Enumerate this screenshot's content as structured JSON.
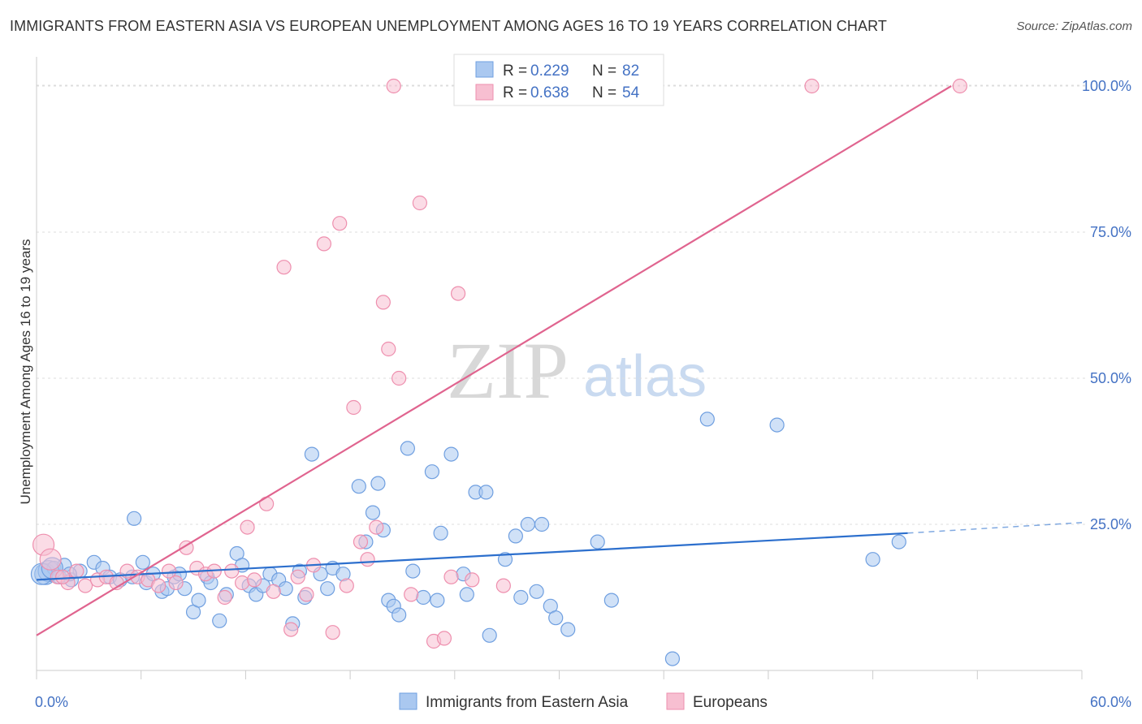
{
  "header": {
    "title": "IMMIGRANTS FROM EASTERN ASIA VS EUROPEAN UNEMPLOYMENT AMONG AGES 16 TO 19 YEARS CORRELATION CHART",
    "source": "Source: ZipAtlas.com"
  },
  "watermark": {
    "zip": "ZIP",
    "atlas": "atlas"
  },
  "chart_data": {
    "type": "scatter",
    "title": "IMMIGRANTS FROM EASTERN ASIA VS EUROPEAN UNEMPLOYMENT AMONG AGES 16 TO 19 YEARS CORRELATION CHART",
    "xlabel": "",
    "ylabel": "Unemployment Among Ages 16 to 19 years",
    "xlim": [
      0,
      60
    ],
    "ylim": [
      0,
      105
    ],
    "x_tick_labels": {
      "min": "0.0%",
      "max": "60.0%"
    },
    "y_tick_labels": [
      "25.0%",
      "50.0%",
      "75.0%",
      "100.0%"
    ],
    "y_tick_values": [
      25,
      50,
      75,
      100
    ],
    "grid": true,
    "legend_position": "top-center",
    "legend": [
      {
        "r_label": "R =",
        "r_value": "0.229",
        "n_label": "N =",
        "n_value": "82"
      },
      {
        "r_label": "R =",
        "r_value": "0.638",
        "n_label": "N =",
        "n_value": "54"
      }
    ],
    "series": [
      {
        "name": "Immigrants from Eastern Asia",
        "color": "#6f9fe0",
        "fill": "#aac8f0",
        "line_color": "#2c6fcd",
        "trend": {
          "x0": 0,
          "y0": 15.5,
          "x1": 50,
          "y1": 23.5,
          "dash_to_x": 60,
          "dash_to_y": 25.3
        },
        "points": [
          [
            0.5,
            16.5
          ],
          [
            0.7,
            17.0
          ],
          [
            1.0,
            17.5
          ],
          [
            1.3,
            16.0
          ],
          [
            1.6,
            18.0
          ],
          [
            2.0,
            15.5
          ],
          [
            2.5,
            17.0
          ],
          [
            3.3,
            18.5
          ],
          [
            3.8,
            17.5
          ],
          [
            4.2,
            16.0
          ],
          [
            4.8,
            15.5
          ],
          [
            5.5,
            16.0
          ],
          [
            5.6,
            26.0
          ],
          [
            6.1,
            18.5
          ],
          [
            6.3,
            15.0
          ],
          [
            6.7,
            16.5
          ],
          [
            7.2,
            13.5
          ],
          [
            7.5,
            14.0
          ],
          [
            7.9,
            16.0
          ],
          [
            8.2,
            16.5
          ],
          [
            8.5,
            14.0
          ],
          [
            9.0,
            10.0
          ],
          [
            9.3,
            12.0
          ],
          [
            9.8,
            16.0
          ],
          [
            10.0,
            15.0
          ],
          [
            10.5,
            8.5
          ],
          [
            10.9,
            13.0
          ],
          [
            11.5,
            20.0
          ],
          [
            11.8,
            18.0
          ],
          [
            12.2,
            14.5
          ],
          [
            12.6,
            13.0
          ],
          [
            13.0,
            14.5
          ],
          [
            13.4,
            16.5
          ],
          [
            13.9,
            15.5
          ],
          [
            14.3,
            14.0
          ],
          [
            14.7,
            8.0
          ],
          [
            15.1,
            17.0
          ],
          [
            15.4,
            12.5
          ],
          [
            15.8,
            37.0
          ],
          [
            16.3,
            16.5
          ],
          [
            16.7,
            14.0
          ],
          [
            17.0,
            17.5
          ],
          [
            17.6,
            16.5
          ],
          [
            18.5,
            31.5
          ],
          [
            18.9,
            22.0
          ],
          [
            19.3,
            27.0
          ],
          [
            19.6,
            32.0
          ],
          [
            19.9,
            24.0
          ],
          [
            20.2,
            12.0
          ],
          [
            20.5,
            11.0
          ],
          [
            20.8,
            9.5
          ],
          [
            21.3,
            38.0
          ],
          [
            21.6,
            17.0
          ],
          [
            22.2,
            12.5
          ],
          [
            22.7,
            34.0
          ],
          [
            23.0,
            12.0
          ],
          [
            23.2,
            23.5
          ],
          [
            23.8,
            37.0
          ],
          [
            24.5,
            16.5
          ],
          [
            24.7,
            13.0
          ],
          [
            25.2,
            30.5
          ],
          [
            25.8,
            30.5
          ],
          [
            26.0,
            6.0
          ],
          [
            26.9,
            19.0
          ],
          [
            27.5,
            23.0
          ],
          [
            27.8,
            12.5
          ],
          [
            28.2,
            25.0
          ],
          [
            28.7,
            13.5
          ],
          [
            29.0,
            25.0
          ],
          [
            29.5,
            11.0
          ],
          [
            29.8,
            9.0
          ],
          [
            30.5,
            7.0
          ],
          [
            32.2,
            22.0
          ],
          [
            33.0,
            12.0
          ],
          [
            36.5,
            2.0
          ],
          [
            38.5,
            43.0
          ],
          [
            42.5,
            42.0
          ],
          [
            48.0,
            19.0
          ],
          [
            49.5,
            22.0
          ],
          [
            0.3,
            16.5
          ],
          [
            0.9,
            17.5
          ],
          [
            1.9,
            16.5
          ]
        ]
      },
      {
        "name": "Europeans",
        "color": "#ee8fae",
        "fill": "#f7bfd1",
        "line_color": "#e0648f",
        "trend": {
          "x0": 0,
          "y0": 6,
          "x1": 52.5,
          "y1": 100
        },
        "points": [
          [
            0.4,
            21.5
          ],
          [
            0.8,
            19.0
          ],
          [
            1.2,
            16.0
          ],
          [
            1.8,
            15.0
          ],
          [
            2.3,
            17.0
          ],
          [
            2.8,
            14.5
          ],
          [
            3.5,
            15.5
          ],
          [
            4.0,
            16.0
          ],
          [
            4.6,
            15.0
          ],
          [
            5.2,
            17.0
          ],
          [
            5.8,
            16.0
          ],
          [
            6.4,
            15.5
          ],
          [
            7.0,
            14.5
          ],
          [
            7.6,
            17.0
          ],
          [
            8.0,
            15.0
          ],
          [
            8.6,
            21.0
          ],
          [
            9.2,
            17.5
          ],
          [
            9.7,
            16.5
          ],
          [
            10.2,
            17.0
          ],
          [
            10.8,
            12.5
          ],
          [
            11.2,
            17.0
          ],
          [
            11.8,
            15.0
          ],
          [
            12.1,
            24.5
          ],
          [
            12.5,
            15.5
          ],
          [
            13.2,
            28.5
          ],
          [
            13.6,
            13.5
          ],
          [
            14.2,
            69.0
          ],
          [
            14.6,
            7.0
          ],
          [
            15.0,
            16.0
          ],
          [
            15.5,
            13.0
          ],
          [
            15.9,
            18.0
          ],
          [
            16.5,
            73.0
          ],
          [
            17.0,
            6.5
          ],
          [
            17.4,
            76.5
          ],
          [
            17.8,
            14.5
          ],
          [
            18.2,
            45.0
          ],
          [
            18.6,
            22.0
          ],
          [
            19.0,
            19.0
          ],
          [
            19.5,
            24.5
          ],
          [
            19.9,
            63.0
          ],
          [
            20.2,
            55.0
          ],
          [
            20.8,
            50.0
          ],
          [
            21.5,
            13.0
          ],
          [
            22.0,
            80.0
          ],
          [
            22.8,
            5.0
          ],
          [
            23.4,
            5.5
          ],
          [
            23.8,
            16.0
          ],
          [
            24.2,
            64.5
          ],
          [
            25.0,
            15.5
          ],
          [
            26.8,
            14.5
          ],
          [
            20.5,
            100.0
          ],
          [
            44.5,
            100.0
          ],
          [
            53.0,
            100.0
          ],
          [
            1.5,
            16.0
          ]
        ]
      }
    ]
  }
}
